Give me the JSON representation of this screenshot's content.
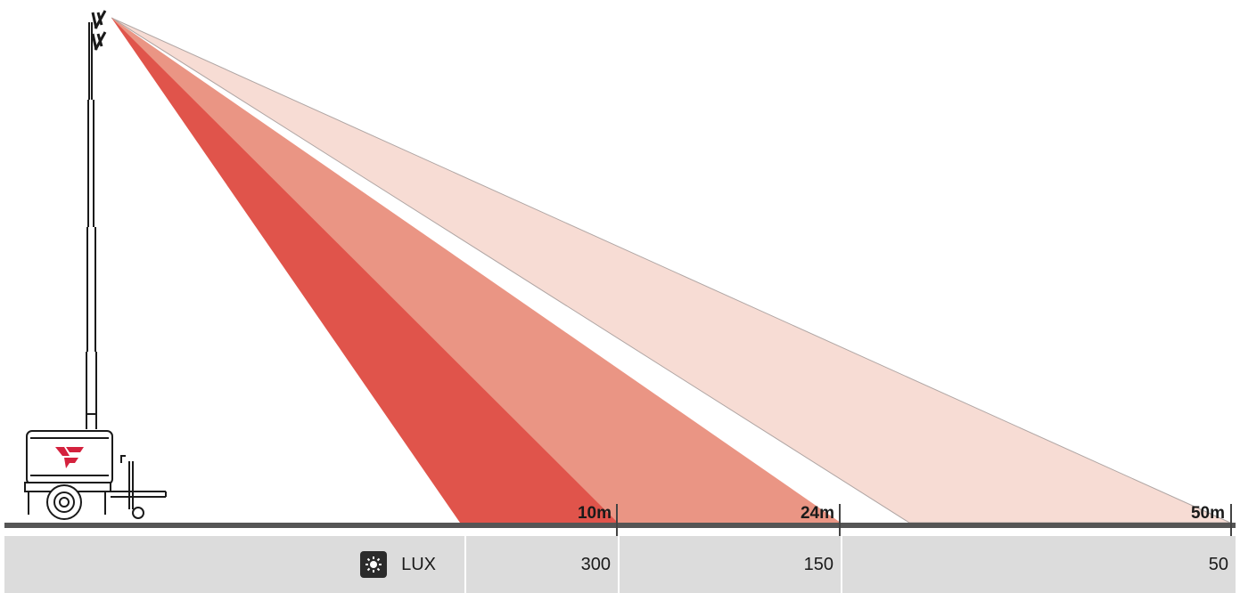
{
  "distances": [
    {
      "label": "10m",
      "value_m": 10
    },
    {
      "label": "24m",
      "value_m": 24
    },
    {
      "label": "50m",
      "value_m": 50
    }
  ],
  "lux_table": {
    "header_label": "LUX",
    "header_icon": "sun-icon",
    "values": [
      "300",
      "150",
      "50"
    ]
  },
  "beam_colors": {
    "zone_300_lux": "#e0544b",
    "zone_150_lux": "#ea9584",
    "zone_50_lux": "#f7dcd4"
  },
  "brand": {
    "logo_color": "#d4213d"
  }
}
